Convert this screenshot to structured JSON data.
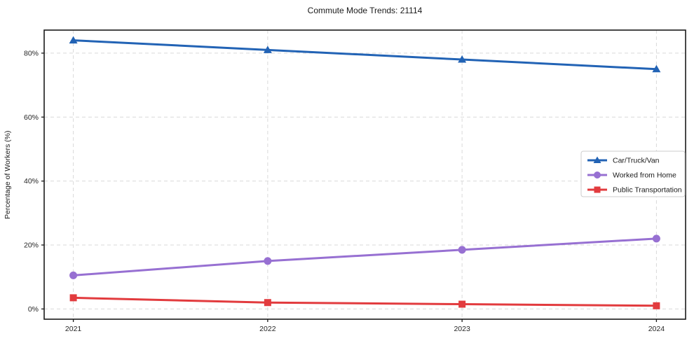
{
  "chart_data": {
    "type": "line",
    "title": "Commute Mode Trends: 21114",
    "xlabel": "",
    "ylabel": "Percentage of Workers (%)",
    "x": [
      2021,
      2022,
      2023,
      2024
    ],
    "x_tick_labels": [
      "2021",
      "2022",
      "2023",
      "2024"
    ],
    "y_ticks": [
      0,
      20,
      40,
      60,
      80
    ],
    "y_tick_labels": [
      "0%",
      "20%",
      "40%",
      "60%",
      "80%"
    ],
    "xlim": [
      2020.85,
      2024.15
    ],
    "ylim": [
      -3.2,
      87.2
    ],
    "grid": true,
    "grid_style": "dashed",
    "legend_position": "center-right",
    "series": [
      {
        "name": "Car/Truck/Van",
        "color": "#2263b5",
        "marker": "triangle",
        "values": [
          84,
          81,
          78,
          75
        ]
      },
      {
        "name": "Worked from Home",
        "color": "#9770d2",
        "marker": "circle",
        "values": [
          10.5,
          15,
          18.5,
          22
        ]
      },
      {
        "name": "Public Transportation",
        "color": "#e23b3e",
        "marker": "square",
        "values": [
          3.5,
          2,
          1.5,
          1
        ]
      }
    ],
    "colors": {
      "spine": "#1a1a1a",
      "grid": "#d9d9d9",
      "tick_text": "#262626",
      "legend_border": "#cccccc",
      "background": "#ffffff"
    }
  }
}
